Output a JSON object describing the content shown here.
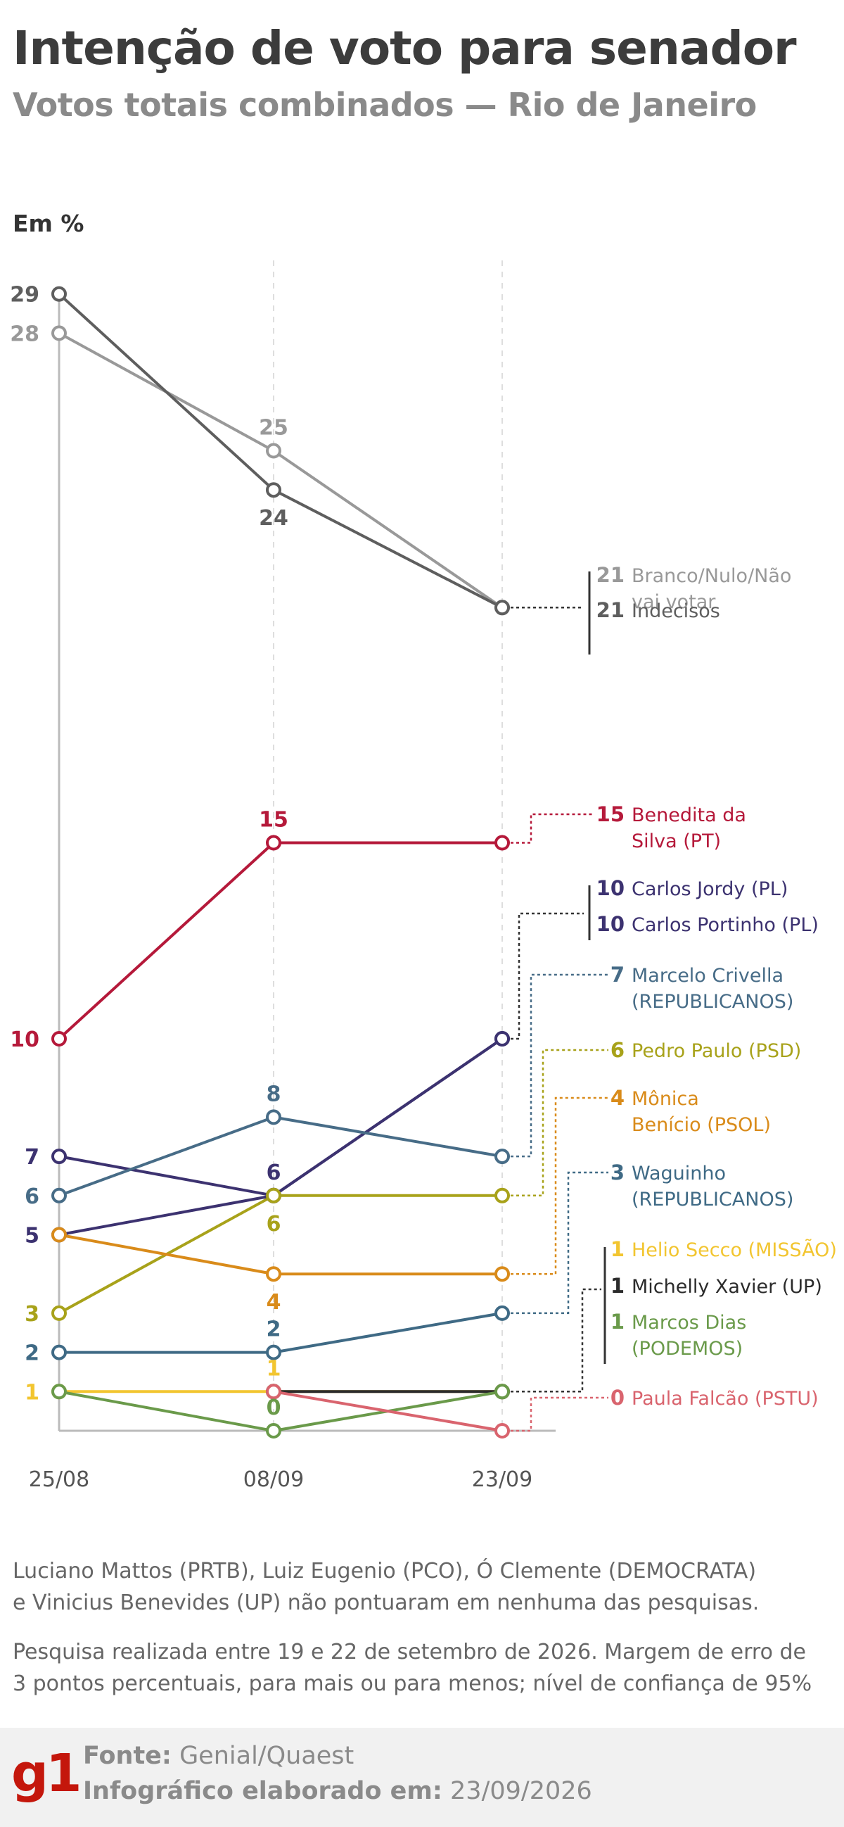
{
  "header": {
    "title": "Intenção de voto para senador",
    "subtitle": "Votos totais combinados — Rio de Janeiro",
    "unit_label": "Em %"
  },
  "chart_data": {
    "type": "line",
    "title": "Intenção de voto para senador",
    "subtitle": "Votos totais combinados — Rio de Janeiro",
    "ylabel": "Em %",
    "x": [
      "25/08",
      "08/09",
      "23/09"
    ],
    "ylim": [
      0,
      29
    ],
    "grid": "vertical dashed lines at each survey date",
    "series": [
      {
        "name": "Branco/Nulo/Não vai votar",
        "values": [
          28,
          25,
          21
        ],
        "color": "#999999"
      },
      {
        "name": "Indecisos",
        "values": [
          29,
          24,
          21
        ],
        "color": "#5e5e5e"
      },
      {
        "name": "Benedita da Silva (PT)",
        "values": [
          10,
          15,
          15
        ],
        "color": "#b5193a"
      },
      {
        "name": "Carlos Jordy (PL)",
        "values": [
          7,
          6,
          10
        ],
        "color": "#3c3270"
      },
      {
        "name": "Carlos Portinho (PL)",
        "values": [
          5,
          6,
          10
        ],
        "color": "#3c3270"
      },
      {
        "name": "Marcelo Crivella (REPUBLICANOS)",
        "values": [
          6,
          8,
          7
        ],
        "color": "#476c87"
      },
      {
        "name": "Pedro Paulo (PSD)",
        "values": [
          3,
          6,
          6
        ],
        "color": "#a8a21a"
      },
      {
        "name": "Mônica Benício (PSOL)",
        "values": [
          5,
          4,
          4
        ],
        "color": "#d98b1a"
      },
      {
        "name": "Waguinho (REPUBLICANOS)",
        "values": [
          2,
          2,
          3
        ],
        "color": "#3f6a85"
      },
      {
        "name": "Helio Secco (MISSÃO)",
        "values": [
          1,
          1,
          1
        ],
        "color": "#f2c530"
      },
      {
        "name": "Michelly Xavier (UP)",
        "values": [
          null,
          1,
          1
        ],
        "color": "#2b2b2b"
      },
      {
        "name": "Marcos Dias (PODEMOS)",
        "values": [
          1,
          0,
          1
        ],
        "color": "#6a9a4a"
      },
      {
        "name": "Paula Falcão (PSTU)",
        "values": [
          null,
          1,
          0
        ],
        "color": "#d9646e"
      }
    ],
    "point_labels": [
      {
        "x": "25/08",
        "text": "29",
        "y": 29,
        "color": "#5e5e5e"
      },
      {
        "x": "25/08",
        "text": "28",
        "y": 28,
        "color": "#999999"
      },
      {
        "x": "25/08",
        "text": "10",
        "y": 10,
        "color": "#b5193a"
      },
      {
        "x": "25/08",
        "text": "7",
        "y": 7,
        "color": "#3c3270"
      },
      {
        "x": "25/08",
        "text": "6",
        "y": 6,
        "color": "#476c87"
      },
      {
        "x": "25/08",
        "text": "5",
        "y": 5,
        "color": "#3c3270"
      },
      {
        "x": "25/08",
        "text": "3",
        "y": 3,
        "color": "#a8a21a"
      },
      {
        "x": "25/08",
        "text": "2",
        "y": 2,
        "color": "#3f6a85"
      },
      {
        "x": "25/08",
        "text": "1",
        "y": 1,
        "color": "#f2c530"
      },
      {
        "x": "08/09",
        "text": "25",
        "y": 25,
        "color": "#999999",
        "pos": "above"
      },
      {
        "x": "08/09",
        "text": "24",
        "y": 24,
        "color": "#5e5e5e",
        "pos": "below"
      },
      {
        "x": "08/09",
        "text": "15",
        "y": 15,
        "color": "#b5193a",
        "pos": "above"
      },
      {
        "x": "08/09",
        "text": "8",
        "y": 8,
        "color": "#476c87",
        "pos": "above"
      },
      {
        "x": "08/09",
        "text": "6",
        "y": 6,
        "color": "#3c3270",
        "pos": "above"
      },
      {
        "x": "08/09",
        "text": "6",
        "y": 6,
        "color": "#a8a21a",
        "pos": "below"
      },
      {
        "x": "08/09",
        "text": "4",
        "y": 4,
        "color": "#d98b1a",
        "pos": "below"
      },
      {
        "x": "08/09",
        "text": "2",
        "y": 2,
        "color": "#3f6a85",
        "pos": "above"
      },
      {
        "x": "08/09",
        "text": "1",
        "y": 1,
        "color": "#f2c530",
        "pos": "above"
      },
      {
        "x": "08/09",
        "text": "0",
        "y": 0,
        "color": "#6a9a4a",
        "pos": "above"
      }
    ],
    "end_labels": [
      {
        "value": "21",
        "name": "Branco/Nulo/Não",
        "name2": "vai votar",
        "color": "#999999"
      },
      {
        "value": "21",
        "name": "Indecisos",
        "name2": "",
        "color": "#5e5e5e"
      },
      {
        "value": "15",
        "name": "Benedita da",
        "name2": "Silva (PT)",
        "color": "#b5193a"
      },
      {
        "value": "10",
        "name": "Carlos Jordy (PL)",
        "name2": "",
        "color": "#3c3270"
      },
      {
        "value": "10",
        "name": "Carlos Portinho (PL)",
        "name2": "",
        "color": "#3c3270"
      },
      {
        "value": "7",
        "name": "Marcelo Crivella",
        "name2": "(REPUBLICANOS)",
        "color": "#476c87"
      },
      {
        "value": "6",
        "name": "Pedro Paulo (PSD)",
        "name2": "",
        "color": "#a8a21a"
      },
      {
        "value": "4",
        "name": "Mônica",
        "name2": "Benício (PSOL)",
        "color": "#d98b1a"
      },
      {
        "value": "3",
        "name": "Waguinho",
        "name2": "(REPUBLICANOS)",
        "color": "#3f6a85"
      },
      {
        "value": "1",
        "name": "Helio Secco (MISSÃO)",
        "name2": "",
        "color": "#f2c530"
      },
      {
        "value": "1",
        "name": "Michelly Xavier (UP)",
        "name2": "",
        "color": "#2b2b2b"
      },
      {
        "value": "1",
        "name": "Marcos Dias",
        "name2": "(PODEMOS)",
        "color": "#6a9a4a"
      },
      {
        "value": "0",
        "name": "Paula Falcão (PSTU)",
        "name2": "",
        "color": "#d9646e"
      }
    ]
  },
  "notes": {
    "not_scored_line1": "Luciano Mattos (PRTB), Luiz Eugenio (PCO), Ó Clemente (DEMOCRATA)",
    "not_scored_line2": "e Vinicius Benevides (UP) não pontuaram em nenhuma das pesquisas.",
    "methodology_line1": "Pesquisa realizada entre 19 e 22 de setembro de 2026. Margem de erro de",
    "methodology_line2": "3 pontos percentuais, para mais ou para menos; nível de confiança de 95%"
  },
  "footer": {
    "logo": "g1",
    "source_label": "Fonte:",
    "source_value": "Genial/Quaest",
    "made_label": "Infográfico elaborado em:",
    "made_value": "23/09/2026"
  }
}
